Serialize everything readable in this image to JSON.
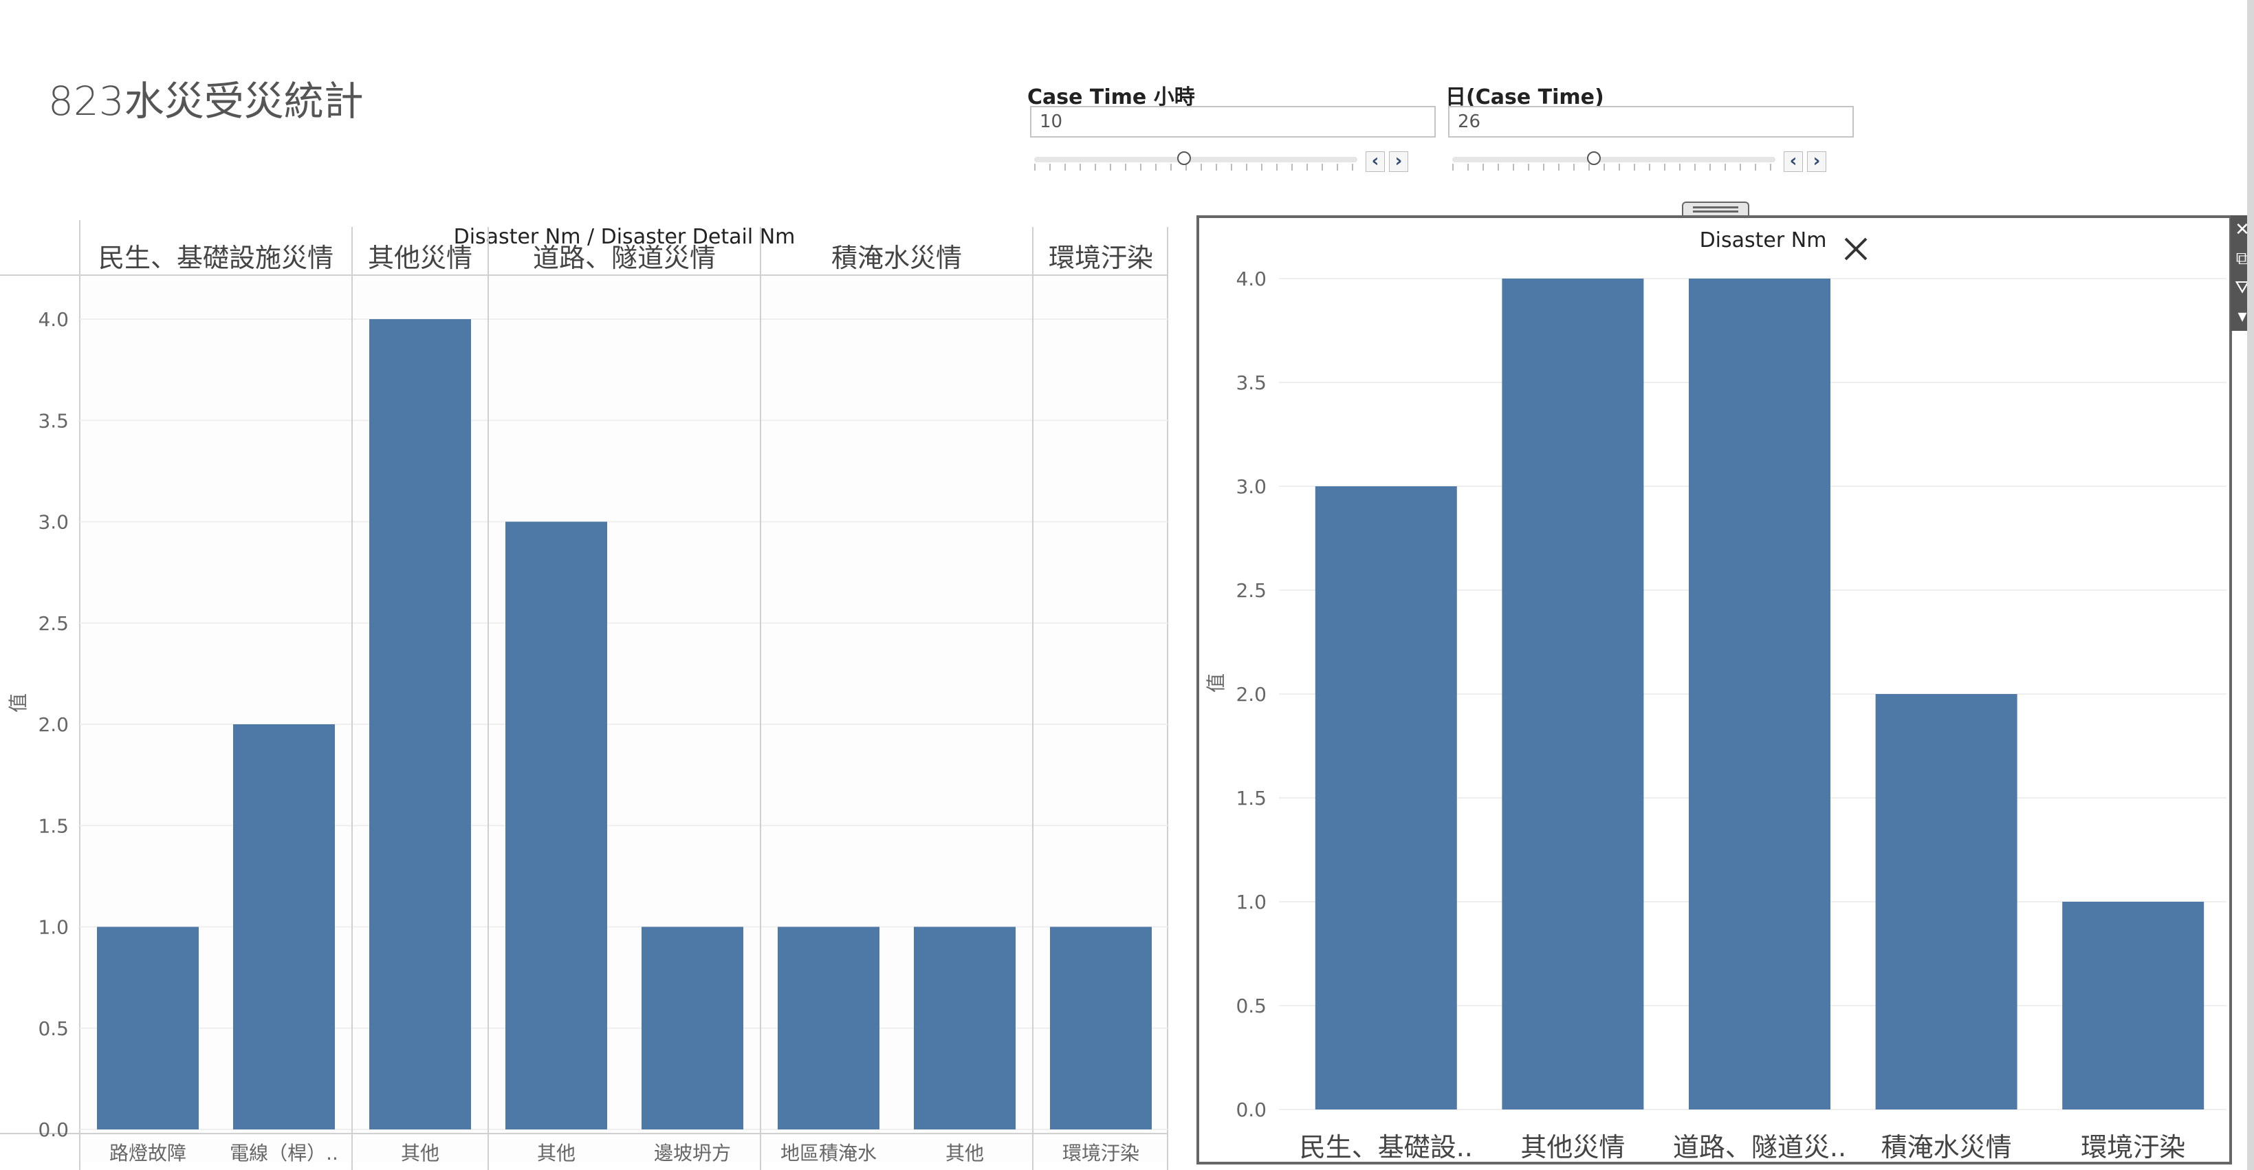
{
  "dashboard": {
    "title": "823水災受災統計"
  },
  "filters": [
    {
      "label": "Case Time 小時",
      "value": "10",
      "prev_icon": "chevron-left-icon",
      "next_icon": "chevron-right-icon"
    },
    {
      "label": "日(Case Time)",
      "value": "26",
      "prev_icon": "chevron-left-icon",
      "next_icon": "chevron-right-icon"
    }
  ],
  "toolbar": {
    "icons": [
      "close-icon",
      "external-link-icon",
      "filter-icon",
      "dropdown-caret-icon"
    ],
    "glyphs": [
      "✕",
      "⧉",
      "⛛",
      "▾"
    ]
  },
  "chart_data": [
    {
      "type": "bar",
      "title": "Disaster Nm / Disaster Detail Nm",
      "ylabel": "值",
      "ylim": [
        0,
        4.0
      ],
      "yticks": [
        "0.0",
        "0.5",
        "1.0",
        "1.5",
        "2.0",
        "2.5",
        "3.0",
        "3.5",
        "4.0"
      ],
      "groups": [
        {
          "name": "民生、基礎設施災情",
          "categories": [
            "路燈故障",
            "電線（桿）.."
          ],
          "values": [
            1,
            2
          ]
        },
        {
          "name": "其他災情",
          "categories": [
            "其他"
          ],
          "values": [
            4
          ]
        },
        {
          "name": "道路、隧道災情",
          "categories": [
            "其他",
            "邊坡坍方"
          ],
          "values": [
            3,
            1
          ]
        },
        {
          "name": "積淹水災情",
          "categories": [
            "地區積淹水",
            "其他"
          ],
          "values": [
            1,
            1
          ]
        },
        {
          "name": "環境汙染",
          "categories": [
            "環境汙染"
          ],
          "values": [
            1
          ]
        }
      ],
      "color": "#4e79a7"
    },
    {
      "type": "bar",
      "title": "Disaster Nm",
      "ylabel": "值",
      "ylim": [
        0,
        4.0
      ],
      "yticks": [
        "0.0",
        "0.5",
        "1.0",
        "1.5",
        "2.0",
        "2.5",
        "3.0",
        "3.5",
        "4.0"
      ],
      "categories": [
        "民生、基礎設..",
        "其他災情",
        "道路、隧道災..",
        "積淹水災情",
        "環境汙染"
      ],
      "values": [
        3,
        4,
        4,
        2,
        1
      ],
      "color": "#4e79a7"
    }
  ]
}
